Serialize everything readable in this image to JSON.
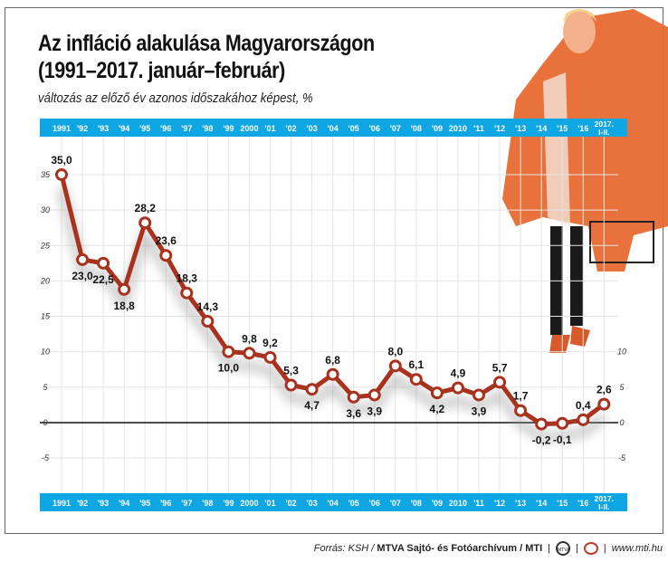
{
  "title_line1": "Az infláció alakulása Magyarországon",
  "title_line2": "(1991–2017. január–február)",
  "subtitle": "változás az előző év azonos időszakához képest, %",
  "footer": {
    "source_prefix": "Forrás: KSH / ",
    "source_bold": "MTVA Sajtó- és Fotóarchívum / MTI",
    "logo1": "MTVA",
    "url": "www.mti.hu"
  },
  "colors": {
    "bar": "#0fa7e3",
    "line": "#a8321e",
    "coat": "#e86a32"
  },
  "chart_data": {
    "type": "line",
    "categories": [
      "1991",
      "'92",
      "'93",
      "'94",
      "'95",
      "'96",
      "'97",
      "'98",
      "'99",
      "2000",
      "'01",
      "'02",
      "'03",
      "'04",
      "'05",
      "'06",
      "'07",
      "'08",
      "'09",
      "2010",
      "'11",
      "'12",
      "'13",
      "'14",
      "'15",
      "'16",
      "2017. I-II."
    ],
    "values": [
      35.0,
      23.0,
      22.5,
      18.8,
      28.2,
      23.6,
      18.3,
      14.3,
      10.0,
      9.8,
      9.2,
      5.3,
      4.7,
      6.8,
      3.6,
      3.9,
      8.0,
      6.1,
      4.2,
      4.9,
      3.9,
      5.7,
      1.7,
      -0.2,
      -0.1,
      0.4,
      2.6
    ],
    "data_labels": [
      "35,0",
      "23,0",
      "22,5",
      "18,8",
      "28,2",
      "23,6",
      "18,3",
      "14,3",
      "10,0",
      "9,8",
      "9,2",
      "5,3",
      "4,7",
      "6,8",
      "3,6",
      "3,9",
      "8,0",
      "6,1",
      "4,2",
      "4,9",
      "3,9",
      "5,7",
      "1,7",
      "-0,2",
      "-0,1",
      "0,4",
      "2,6"
    ],
    "label_below": [
      false,
      true,
      true,
      true,
      false,
      false,
      false,
      false,
      true,
      false,
      false,
      false,
      true,
      false,
      true,
      true,
      false,
      false,
      true,
      false,
      true,
      false,
      false,
      true,
      true,
      false,
      false
    ],
    "left_ticks": [
      "35",
      "30",
      "25",
      "20",
      "15",
      "10",
      "5",
      "0",
      "-5"
    ],
    "right_ticks": [
      "10",
      "5",
      "0",
      "-5"
    ],
    "ylim": [
      -8.5,
      40
    ],
    "grid": true
  }
}
